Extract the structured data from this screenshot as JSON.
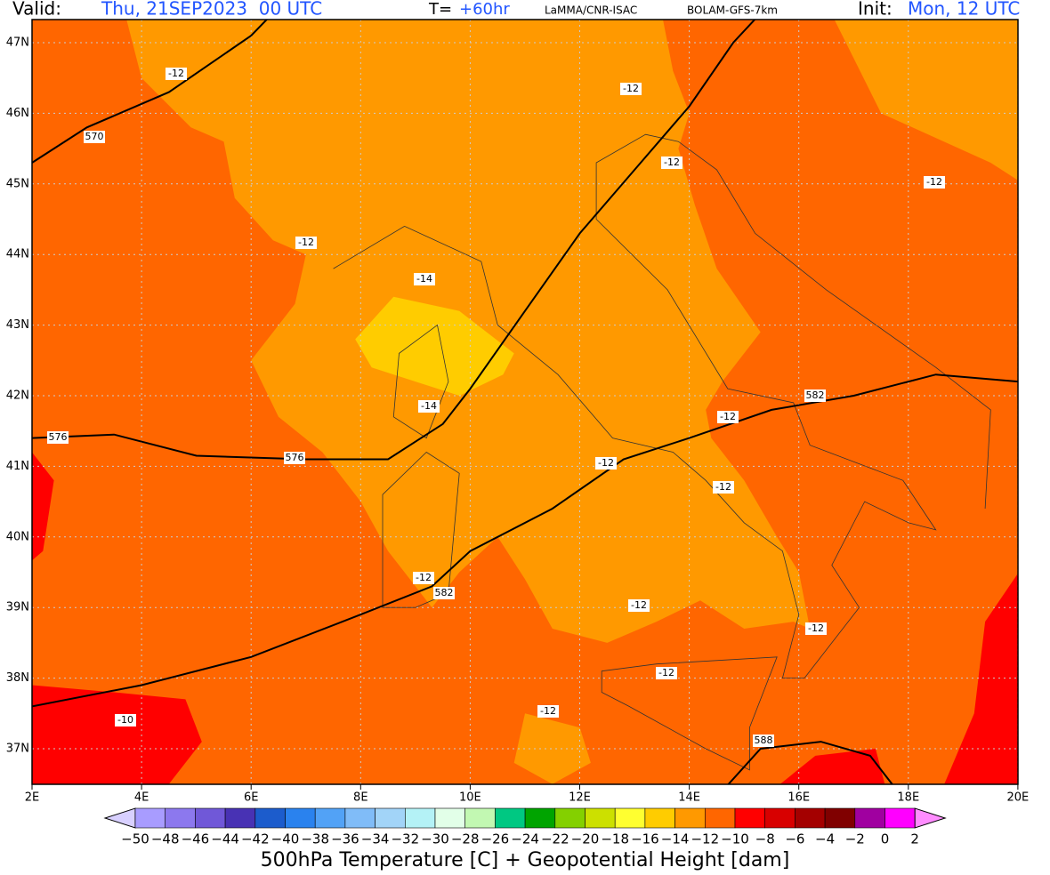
{
  "header": {
    "valid_label": "Valid:",
    "valid_value": "Thu, 21SEP2023  00 UTC",
    "t_label": "T=",
    "t_value": "+60hr",
    "source": "LaMMA/CNR-ISAC",
    "model": "BOLAM-GFS-7km",
    "init_label": "Init:",
    "init_value": "Mon, 12 UTC"
  },
  "map": {
    "lon_ticks": [
      "2E",
      "4E",
      "6E",
      "8E",
      "10E",
      "12E",
      "14E",
      "16E",
      "18E",
      "20E"
    ],
    "lat_ticks": [
      "37N",
      "38N",
      "39N",
      "40N",
      "41N",
      "42N",
      "43N",
      "44N",
      "45N",
      "46N",
      "47N"
    ],
    "contour_labels": [
      "-12",
      "570",
      "-12",
      "-12",
      "-12",
      "-12",
      "-14",
      "-14",
      "576",
      "576",
      "-12",
      "582",
      "-12",
      "-12",
      "582",
      "-12",
      "-12",
      "-12",
      "-12",
      "-12",
      "-10",
      "588"
    ]
  },
  "colorbar": {
    "colors": [
      "#a89cff",
      "#8c78ee",
      "#7058d8",
      "#4832b4",
      "#1c5ccc",
      "#2a82ee",
      "#52a2f6",
      "#80bcf8",
      "#a2d4f8",
      "#b4f2f6",
      "#e2ffe8",
      "#c2f8b2",
      "#00c882",
      "#00a400",
      "#84d000",
      "#cce000",
      "#ffff30",
      "#ffcc00",
      "#ff9900",
      "#ff6600",
      "#ff0000",
      "#d80000",
      "#a40000",
      "#800000",
      "#a000a0",
      "#ff00ff"
    ],
    "under_color": "#d8d0ff",
    "over_color": "#ff8cff",
    "labels": [
      "−50",
      "−48",
      "−46",
      "−44",
      "−42",
      "−40",
      "−38",
      "−36",
      "−34",
      "−32",
      "−30",
      "−28",
      "−26",
      "−24",
      "−22",
      "−20",
      "−18",
      "−16",
      "−14",
      "−12",
      "−10",
      "−8",
      "−6",
      "−4",
      "−2",
      "0",
      "2"
    ],
    "title": "500hPa Temperature [C] + Geopotential Height [dam]"
  }
}
